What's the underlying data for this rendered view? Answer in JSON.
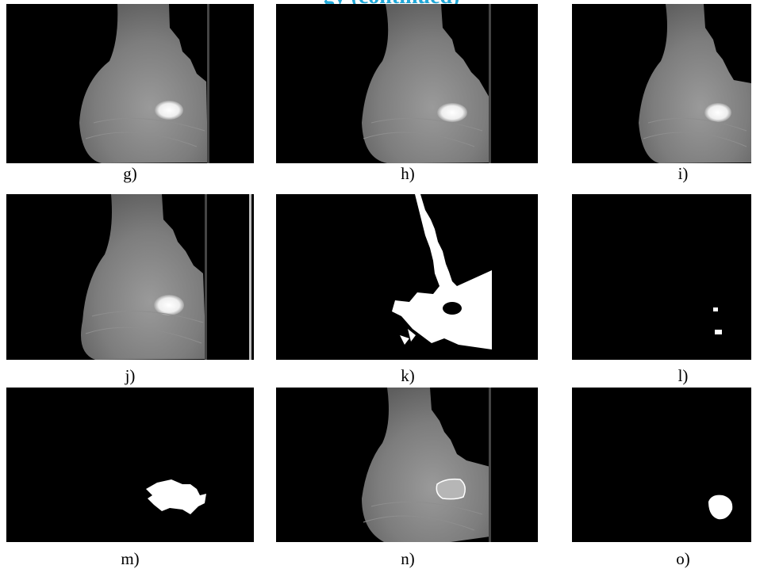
{
  "header": {
    "partial_text": "gy (continued)",
    "color": "#21a8d8"
  },
  "panels": [
    {
      "label": "g)",
      "content": "mammogram"
    },
    {
      "label": "h)",
      "content": "mammogram"
    },
    {
      "label": "i)",
      "content": "mammogram"
    },
    {
      "label": "j)",
      "content": "mammogram"
    },
    {
      "label": "k)",
      "content": "binary-breast-mask"
    },
    {
      "label": "l)",
      "content": "binary-small-spots"
    },
    {
      "label": "m)",
      "content": "binary-mass-region"
    },
    {
      "label": "n)",
      "content": "mammogram-with-mass-contour"
    },
    {
      "label": "o)",
      "content": "binary-mass-blob"
    }
  ]
}
